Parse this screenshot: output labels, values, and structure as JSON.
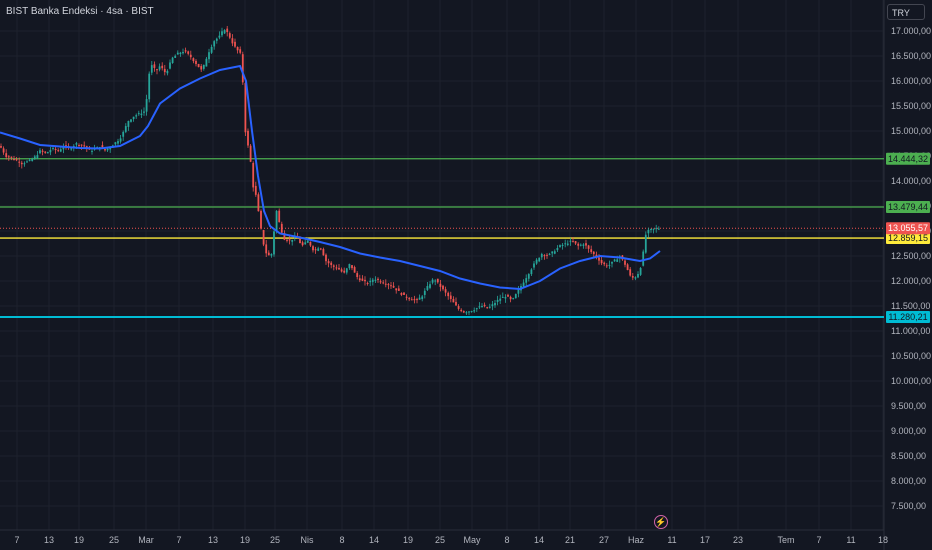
{
  "header": {
    "title": "BIST Banka Endeksi · 4sa · BIST",
    "currency": "TRY"
  },
  "colors": {
    "background": "#131722",
    "grid": "#1e222d",
    "up": "#26a69a",
    "down": "#ef5350",
    "ma": "#2962ff",
    "green_line": "#4caf50",
    "yellow_line": "#ffeb3b",
    "cyan_line": "#00bcd4"
  },
  "icons": {
    "flash": "lightning-icon"
  },
  "chart_data": {
    "type": "candlestick",
    "title": "BIST Banka Endeksi · 4sa · BIST",
    "ylim": [
      7200,
      17300
    ],
    "y_ticks": [
      "17.000,00",
      "16.500,00",
      "16.000,00",
      "15.500,00",
      "15.000,00",
      "14.500,00",
      "14.000,00",
      "13.500,00",
      "13.000,00",
      "12.500,00",
      "12.000,00",
      "11.500,00",
      "11.000,00",
      "10.500,00",
      "10.000,00",
      "9.500,00",
      "9.000,00",
      "8.500,00",
      "8.000,00",
      "7.500,00"
    ],
    "x_ticks": [
      "7",
      "13",
      "19",
      "25",
      "Mar",
      "7",
      "13",
      "19",
      "25",
      "Nis",
      "8",
      "14",
      "19",
      "25",
      "May",
      "8",
      "14",
      "21",
      "27",
      "Haz",
      "11",
      "17",
      "23",
      "Tem",
      "7",
      "11",
      "18"
    ],
    "horizontal_lines": [
      {
        "value": 14444.32,
        "label": "14.444,32",
        "color": "#4caf50"
      },
      {
        "value": 13479.44,
        "label": "13.479,44",
        "color": "#4caf50"
      },
      {
        "value": 12859.15,
        "label": "12.859,15",
        "color": "#ffeb3b"
      },
      {
        "value": 11280.21,
        "label": "11.280,21",
        "color": "#00bcd4"
      }
    ],
    "last_price": {
      "value": 13055.57,
      "label": "13.055,57",
      "color": "#ef5350"
    },
    "price_path": [
      [
        0,
        14700
      ],
      [
        6,
        14500
      ],
      [
        12,
        14450
      ],
      [
        18,
        14400
      ],
      [
        22,
        14350
      ],
      [
        26,
        14380
      ],
      [
        30,
        14400
      ],
      [
        36,
        14500
      ],
      [
        40,
        14600
      ],
      [
        46,
        14550
      ],
      [
        52,
        14650
      ],
      [
        58,
        14600
      ],
      [
        64,
        14700
      ],
      [
        70,
        14650
      ],
      [
        76,
        14750
      ],
      [
        84,
        14700
      ],
      [
        90,
        14600
      ],
      [
        96,
        14650
      ],
      [
        100,
        14700
      ],
      [
        104,
        14600
      ],
      [
        110,
        14680
      ],
      [
        116,
        14780
      ],
      [
        120,
        14850
      ],
      [
        124,
        15000
      ],
      [
        128,
        15200
      ],
      [
        134,
        15300
      ],
      [
        140,
        15350
      ],
      [
        145,
        15400
      ],
      [
        148,
        15850
      ],
      [
        150,
        16350
      ],
      [
        156,
        16200
      ],
      [
        160,
        16300
      ],
      [
        166,
        16150
      ],
      [
        172,
        16450
      ],
      [
        178,
        16550
      ],
      [
        184,
        16600
      ],
      [
        190,
        16500
      ],
      [
        196,
        16350
      ],
      [
        202,
        16200
      ],
      [
        208,
        16550
      ],
      [
        214,
        16800
      ],
      [
        220,
        16900
      ],
      [
        224,
        17050
      ],
      [
        228,
        16950
      ],
      [
        234,
        16700
      ],
      [
        238,
        16600
      ],
      [
        242,
        16500
      ],
      [
        244,
        15200
      ],
      [
        246,
        14900
      ],
      [
        250,
        14500
      ],
      [
        253,
        13900
      ],
      [
        256,
        13700
      ],
      [
        259,
        13300
      ],
      [
        262,
        12900
      ],
      [
        265,
        12600
      ],
      [
        268,
        12500
      ],
      [
        272,
        12550
      ],
      [
        276,
        13450
      ],
      [
        280,
        13100
      ],
      [
        284,
        12850
      ],
      [
        290,
        12800
      ],
      [
        296,
        12900
      ],
      [
        302,
        12700
      ],
      [
        308,
        12800
      ],
      [
        314,
        12600
      ],
      [
        320,
        12700
      ],
      [
        326,
        12400
      ],
      [
        332,
        12300
      ],
      [
        338,
        12250
      ],
      [
        344,
        12150
      ],
      [
        350,
        12350
      ],
      [
        356,
        12100
      ],
      [
        362,
        12000
      ],
      [
        368,
        11950
      ],
      [
        374,
        12050
      ],
      [
        380,
        12000
      ],
      [
        386,
        11950
      ],
      [
        392,
        11900
      ],
      [
        398,
        11800
      ],
      [
        404,
        11700
      ],
      [
        410,
        11650
      ],
      [
        416,
        11600
      ],
      [
        422,
        11700
      ],
      [
        428,
        11900
      ],
      [
        434,
        12050
      ],
      [
        440,
        11900
      ],
      [
        446,
        11750
      ],
      [
        452,
        11600
      ],
      [
        458,
        11450
      ],
      [
        464,
        11380
      ],
      [
        470,
        11400
      ],
      [
        476,
        11450
      ],
      [
        482,
        11500
      ],
      [
        488,
        11450
      ],
      [
        494,
        11550
      ],
      [
        500,
        11650
      ],
      [
        506,
        11700
      ],
      [
        512,
        11600
      ],
      [
        518,
        11800
      ],
      [
        524,
        12000
      ],
      [
        530,
        12200
      ],
      [
        536,
        12400
      ],
      [
        542,
        12550
      ],
      [
        548,
        12500
      ],
      [
        554,
        12600
      ],
      [
        560,
        12700
      ],
      [
        566,
        12750
      ],
      [
        572,
        12800
      ],
      [
        578,
        12700
      ],
      [
        584,
        12750
      ],
      [
        590,
        12600
      ],
      [
        596,
        12500
      ],
      [
        602,
        12350
      ],
      [
        608,
        12300
      ],
      [
        614,
        12400
      ],
      [
        620,
        12500
      ],
      [
        626,
        12300
      ],
      [
        630,
        12100
      ],
      [
        634,
        12050
      ],
      [
        638,
        12150
      ],
      [
        642,
        12350
      ],
      [
        645,
        12900
      ],
      [
        648,
        13000
      ],
      [
        652,
        13030
      ],
      [
        656,
        13050
      ],
      [
        660,
        13055
      ]
    ],
    "moving_average": [
      [
        0,
        14970
      ],
      [
        20,
        14850
      ],
      [
        40,
        14720
      ],
      [
        60,
        14690
      ],
      [
        80,
        14660
      ],
      [
        100,
        14650
      ],
      [
        120,
        14700
      ],
      [
        140,
        14900
      ],
      [
        148,
        15100
      ],
      [
        160,
        15550
      ],
      [
        180,
        15850
      ],
      [
        200,
        16050
      ],
      [
        220,
        16220
      ],
      [
        240,
        16300
      ],
      [
        246,
        16000
      ],
      [
        252,
        15000
      ],
      [
        258,
        14100
      ],
      [
        264,
        13400
      ],
      [
        270,
        13100
      ],
      [
        280,
        12950
      ],
      [
        300,
        12870
      ],
      [
        320,
        12780
      ],
      [
        340,
        12680
      ],
      [
        360,
        12550
      ],
      [
        380,
        12470
      ],
      [
        400,
        12400
      ],
      [
        420,
        12300
      ],
      [
        440,
        12200
      ],
      [
        460,
        12050
      ],
      [
        480,
        11950
      ],
      [
        500,
        11870
      ],
      [
        520,
        11840
      ],
      [
        540,
        12000
      ],
      [
        560,
        12250
      ],
      [
        580,
        12400
      ],
      [
        600,
        12500
      ],
      [
        620,
        12470
      ],
      [
        640,
        12400
      ],
      [
        650,
        12450
      ],
      [
        660,
        12600
      ]
    ]
  }
}
